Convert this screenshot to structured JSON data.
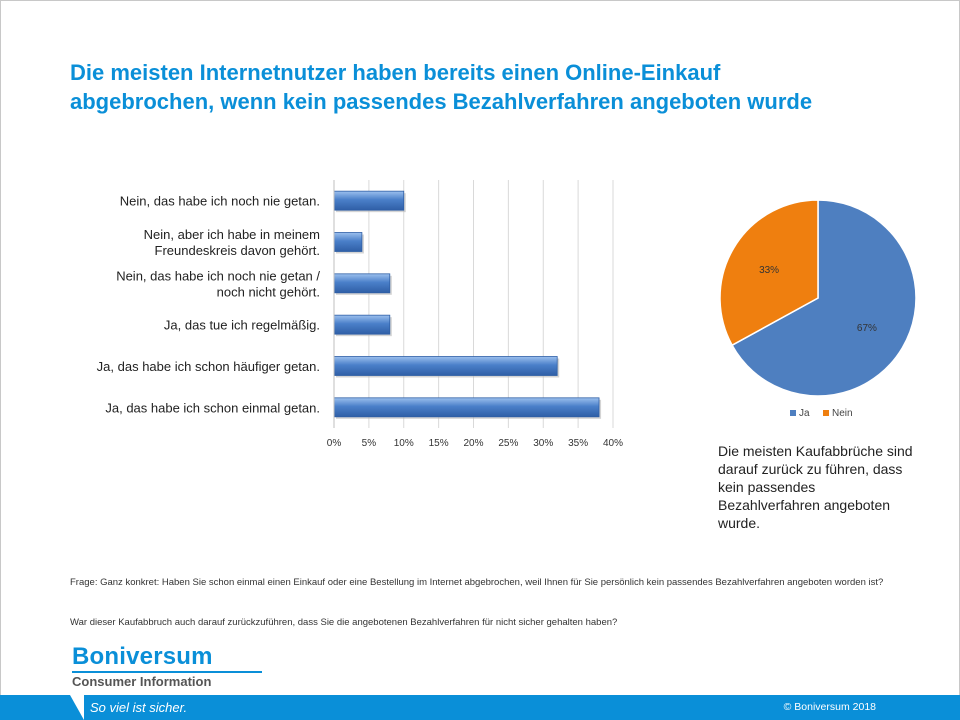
{
  "title": {
    "line1": "Die meisten Internetnutzer haben bereits einen Online-Einkauf",
    "line2": "abgebrochen, wenn kein passendes Bezahlverfahren angeboten wurde"
  },
  "chart_data": [
    {
      "type": "bar",
      "orientation": "horizontal",
      "categories": [
        [
          "Nein, das habe ich noch nie getan."
        ],
        [
          "Nein, aber ich habe in meinem",
          "Freundeskreis davon gehört."
        ],
        [
          "Nein, das habe ich noch nie getan /",
          "noch nicht gehört."
        ],
        [
          "Ja, das tue ich regelmäßig."
        ],
        [
          "Ja, das habe ich schon häufiger getan."
        ],
        [
          "Ja, das habe ich schon einmal getan."
        ]
      ],
      "values": [
        10,
        4,
        8,
        8,
        32,
        38
      ],
      "xlim": [
        0,
        40
      ],
      "xticks": [
        "0%",
        "5%",
        "10%",
        "15%",
        "20%",
        "25%",
        "30%",
        "35%",
        "40%"
      ],
      "grid": true,
      "bar_color": "#4a7fc9"
    },
    {
      "type": "pie",
      "slices": [
        {
          "name": "Ja",
          "value": 67,
          "label": "67%",
          "color": "#4e7fc0"
        },
        {
          "name": "Nein",
          "value": 33,
          "label": "33%",
          "color": "#ef7f0f"
        }
      ],
      "legend": "bottom"
    }
  ],
  "pie_note": "Die meisten Kaufabbrüche sind darauf zurück zu führen, dass kein passendes Bezahlverfahren angeboten wurde.",
  "notes": {
    "question1": "Frage: Ganz konkret: Haben Sie schon einmal einen Einkauf oder eine Bestellung im Internet abgebrochen, weil Ihnen für Sie persönlich kein passendes Bezahlverfahren angeboten worden ist?",
    "question2": "War dieser Kaufabbruch auch darauf zurückzuführen, dass Sie die angebotenen Bezahlverfahren für nicht sicher gehalten haben?"
  },
  "brand": {
    "name": "Boniversum",
    "subtitle": "Consumer Information",
    "slogan": "So viel ist sicher.",
    "copyright": "© Boniversum 2018",
    "color": "#0a8fd8"
  }
}
